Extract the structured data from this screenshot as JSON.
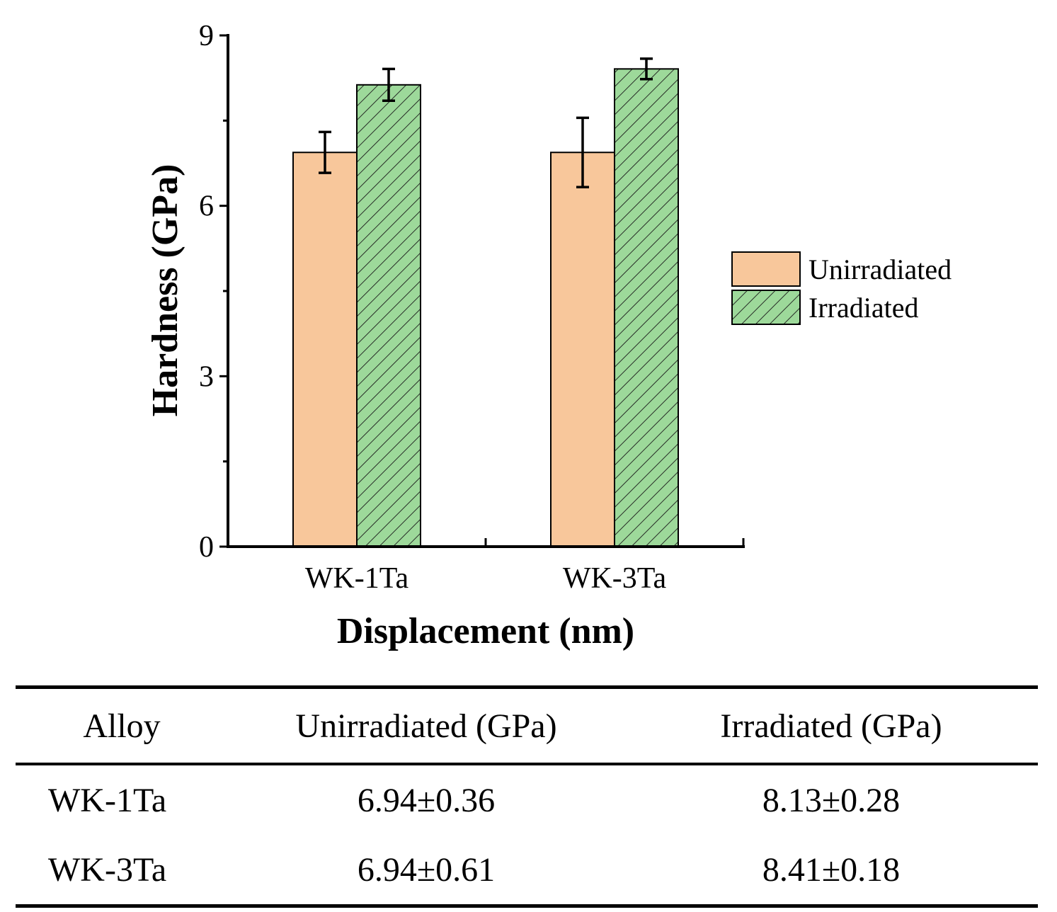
{
  "chart_data": {
    "type": "bar",
    "categories": [
      "WK-1Ta",
      "WK-3Ta"
    ],
    "series": [
      {
        "name": "Unirradiated",
        "values": [
          6.94,
          6.94
        ],
        "errors": [
          0.36,
          0.61
        ],
        "color": "#F8C79B",
        "pattern": "none"
      },
      {
        "name": "Irradiated",
        "values": [
          8.13,
          8.41
        ],
        "errors": [
          0.28,
          0.18
        ],
        "color": "#9DD99A",
        "pattern": "diagonal-hatch"
      }
    ],
    "xlabel": "Displacement (nm)",
    "ylabel": "Hardness (GPa)",
    "ylim": [
      0,
      9
    ],
    "yticks": [
      "0",
      "3",
      "6",
      "9"
    ],
    "legend_position": "right"
  },
  "table": {
    "headers": [
      "Alloy",
      "Unirradiated (GPa)",
      "Irradiated (GPa)"
    ],
    "rows": [
      [
        "WK-1Ta",
        "6.94±0.36",
        "8.13±0.28"
      ],
      [
        "WK-3Ta",
        "6.94±0.61",
        "8.41±0.18"
      ]
    ]
  }
}
